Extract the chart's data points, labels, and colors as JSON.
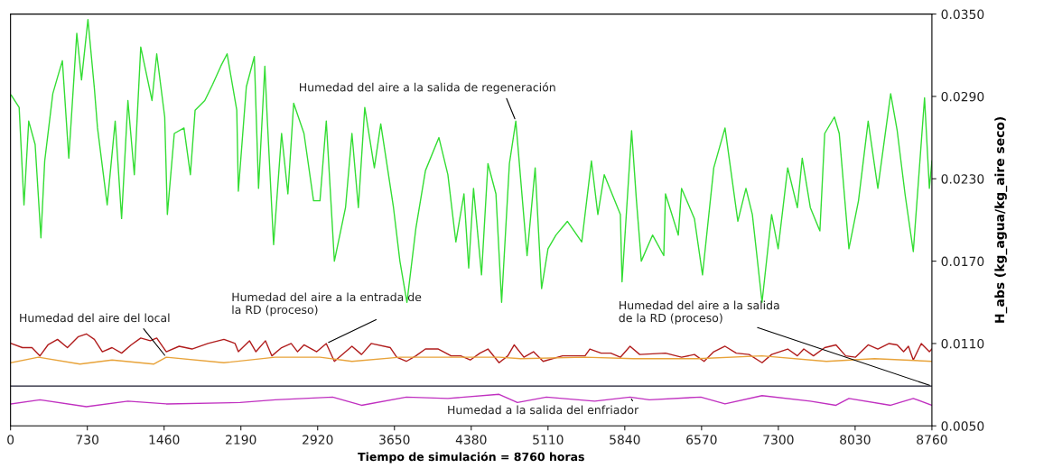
{
  "chart_data": {
    "type": "line",
    "xlabel": "Tiempo de simulación = 8760 horas",
    "ylabel": "H_abs (kg_agua/kg_aire seco)",
    "xlim": [
      0,
      8760
    ],
    "xticks": [
      0,
      730,
      1460,
      2190,
      2920,
      3650,
      4380,
      5110,
      5840,
      6570,
      7300,
      8030,
      8760
    ],
    "ylim": [
      0.005,
      0.035
    ],
    "yticks": [
      {
        "value": 0.005,
        "label": "0.0050"
      },
      {
        "value": 0.011,
        "label": "0.0110"
      },
      {
        "value": 0.017,
        "label": "0.0170"
      },
      {
        "value": 0.023,
        "label": "0.0230"
      },
      {
        "value": 0.029,
        "label": "0.0290"
      },
      {
        "value": 0.035,
        "label": "0.0350"
      }
    ],
    "grid": false,
    "marker": "none",
    "line_style": "solid",
    "series": [
      {
        "name": "Humedad del aire a la salida de regeneración",
        "color": "#33dd33",
        "x": [
          6,
          82,
          128,
          173,
          234,
          289,
          325,
          402,
          447,
          493,
          554,
          630,
          675,
          736,
          797,
          827,
          919,
          995,
          1056,
          1116,
          1177,
          1238,
          1345,
          1390,
          1466,
          1491,
          1557,
          1649,
          1710,
          1755,
          1847,
          1923,
          1999,
          2059,
          2151,
          2166,
          2242,
          2318,
          2358,
          2418,
          2440,
          2501,
          2577,
          2637,
          2692,
          2790,
          2881,
          2942,
          3002,
          3079,
          3185,
          3246,
          3307,
          3368,
          3459,
          3520,
          3641,
          3702,
          3769,
          3854,
          3945,
          4073,
          4158,
          4234,
          4311,
          4356,
          4402,
          4478,
          4539,
          4615,
          4669,
          4743,
          4804,
          4911,
          4988,
          5049,
          5110,
          5186,
          5294,
          5431,
          5523,
          5584,
          5645,
          5798,
          5814,
          5905,
          5951,
          5997,
          6104,
          6211,
          6227,
          6349,
          6380,
          6502,
          6579,
          6686,
          6793,
          6915,
          6992,
          7053,
          7145,
          7236,
          7298,
          7389,
          7481,
          7527,
          7604,
          7695,
          7741,
          7833,
          7879,
          7971,
          8062,
          8154,
          8246,
          8368,
          8430,
          8506,
          8583,
          8690,
          8736,
          8760
        ],
        "values": [
          0.0291,
          0.0282,
          0.0211,
          0.0272,
          0.0255,
          0.0187,
          0.0243,
          0.0292,
          0.0304,
          0.0316,
          0.0245,
          0.0336,
          0.0302,
          0.0346,
          0.0296,
          0.0267,
          0.0211,
          0.0272,
          0.0201,
          0.0287,
          0.0233,
          0.0326,
          0.0287,
          0.0321,
          0.0275,
          0.0204,
          0.0263,
          0.0267,
          0.0233,
          0.028,
          0.0287,
          0.0299,
          0.0312,
          0.0321,
          0.028,
          0.0221,
          0.0297,
          0.0319,
          0.0223,
          0.0312,
          0.0275,
          0.0182,
          0.0263,
          0.0219,
          0.0285,
          0.0263,
          0.0214,
          0.0214,
          0.0272,
          0.017,
          0.0209,
          0.0263,
          0.0209,
          0.0282,
          0.0238,
          0.027,
          0.0209,
          0.017,
          0.014,
          0.0194,
          0.0236,
          0.026,
          0.0233,
          0.0184,
          0.0219,
          0.0165,
          0.0223,
          0.016,
          0.0241,
          0.0219,
          0.014,
          0.0241,
          0.0272,
          0.0174,
          0.0238,
          0.015,
          0.0179,
          0.0189,
          0.0199,
          0.0184,
          0.0243,
          0.0204,
          0.0233,
          0.0204,
          0.0155,
          0.0265,
          0.0214,
          0.017,
          0.0189,
          0.0174,
          0.0219,
          0.0189,
          0.0223,
          0.0201,
          0.016,
          0.0238,
          0.0267,
          0.0199,
          0.0223,
          0.0204,
          0.014,
          0.0204,
          0.0179,
          0.0238,
          0.0209,
          0.0245,
          0.0209,
          0.0192,
          0.0263,
          0.0275,
          0.0263,
          0.0179,
          0.0214,
          0.0272,
          0.0223,
          0.0292,
          0.0265,
          0.0218,
          0.0177,
          0.0289,
          0.0223,
          0.0243
        ]
      },
      {
        "name": "Humedad del aire a la entrada de\nla RD (proceso)",
        "color": "#b01c1c",
        "x": [
          6,
          113,
          204,
          280,
          356,
          447,
          541,
          645,
          721,
          797,
          873,
          965,
          1056,
          1147,
          1238,
          1329,
          1390,
          1481,
          1603,
          1725,
          1877,
          2029,
          2135,
          2166,
          2272,
          2333,
          2424,
          2485,
          2577,
          2668,
          2729,
          2790,
          2911,
          3002,
          3079,
          3246,
          3337,
          3429,
          3611,
          3672,
          3763,
          3854,
          3945,
          4067,
          4189,
          4280,
          4371,
          4463,
          4539,
          4645,
          4728,
          4789,
          4881,
          4972,
          5064,
          5248,
          5462,
          5508,
          5615,
          5707,
          5798,
          5890,
          5982,
          6227,
          6380,
          6502,
          6594,
          6686,
          6793,
          6900,
          7022,
          7145,
          7236,
          7389,
          7481,
          7542,
          7634,
          7741,
          7848,
          7940,
          8032,
          8154,
          8246,
          8353,
          8430,
          8491,
          8537,
          8583,
          8659,
          8736,
          8760
        ],
        "values": [
          0.011,
          0.0107,
          0.0107,
          0.0101,
          0.0109,
          0.0113,
          0.0107,
          0.0115,
          0.0117,
          0.0113,
          0.0104,
          0.0107,
          0.0103,
          0.0109,
          0.0114,
          0.0112,
          0.0114,
          0.0104,
          0.0108,
          0.0106,
          0.011,
          0.0113,
          0.011,
          0.0104,
          0.0112,
          0.0104,
          0.0112,
          0.0101,
          0.0107,
          0.011,
          0.0104,
          0.0109,
          0.0104,
          0.011,
          0.0097,
          0.0108,
          0.0102,
          0.011,
          0.0107,
          0.01,
          0.0097,
          0.0101,
          0.0106,
          0.0106,
          0.0101,
          0.0101,
          0.0098,
          0.0103,
          0.0106,
          0.0096,
          0.0101,
          0.0109,
          0.01,
          0.0104,
          0.0097,
          0.0101,
          0.0101,
          0.0106,
          0.0103,
          0.0103,
          0.01,
          0.0108,
          0.0102,
          0.0103,
          0.01,
          0.0102,
          0.0097,
          0.0104,
          0.0108,
          0.0103,
          0.0102,
          0.0096,
          0.0102,
          0.0106,
          0.0101,
          0.0106,
          0.0101,
          0.0107,
          0.0109,
          0.0101,
          0.01,
          0.0109,
          0.0106,
          0.011,
          0.0109,
          0.0104,
          0.0108,
          0.0098,
          0.011,
          0.0104,
          0.0106
        ]
      },
      {
        "name": "Humedad del aire del local",
        "color": "#e8a33a",
        "x": [
          6,
          265,
          660,
          965,
          1360,
          1481,
          2029,
          2516,
          2942,
          3246,
          3702,
          4158,
          4645,
          4850,
          5462,
          5921,
          6533,
          7145,
          7757,
          8215,
          8760
        ],
        "values": [
          0.0096,
          0.01,
          0.0095,
          0.0098,
          0.0095,
          0.01,
          0.0096,
          0.01,
          0.01,
          0.0097,
          0.01,
          0.01,
          0.01,
          0.0099,
          0.01,
          0.0099,
          0.0099,
          0.0101,
          0.0097,
          0.0099,
          0.0097
        ]
      },
      {
        "name": "Humedad del aire a la salida\nde la RD (proceso)",
        "color": "#1a1a2e",
        "x": [
          0,
          8760
        ],
        "values": [
          0.0079,
          0.0079
        ]
      },
      {
        "name": "Humedad a la salida del enfriador",
        "color": "#c030c0",
        "x": [
          6,
          280,
          721,
          1116,
          1481,
          2181,
          2516,
          3063,
          3337,
          3763,
          4158,
          4645,
          4819,
          5095,
          5554,
          5890,
          6074,
          6563,
          6793,
          7145,
          7604,
          7848,
          7971,
          8368,
          8583,
          8760
        ],
        "values": [
          0.0066,
          0.0069,
          0.0064,
          0.0068,
          0.0066,
          0.0067,
          0.0069,
          0.0071,
          0.0065,
          0.0071,
          0.007,
          0.0073,
          0.0067,
          0.0071,
          0.0068,
          0.0071,
          0.0069,
          0.0071,
          0.0066,
          0.0072,
          0.0068,
          0.0065,
          0.007,
          0.0065,
          0.007,
          0.0065
        ]
      }
    ]
  }
}
